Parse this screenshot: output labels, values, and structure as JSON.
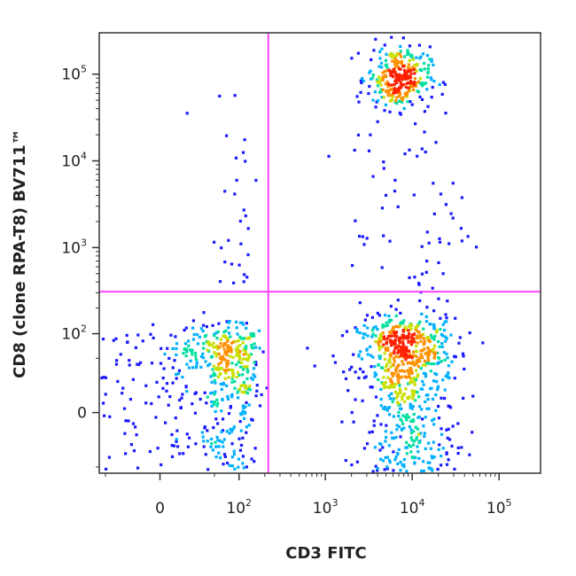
{
  "chart_data": {
    "type": "scatter",
    "xlabel": "CD3 FITC",
    "ylabel": "CD8 (clone RPA-T8) BV711™",
    "x_scale": "biexponential",
    "y_scale": "biexponential",
    "xlim": [
      -60,
      300000
    ],
    "ylim": [
      -60,
      300000
    ],
    "x_ticks": [
      {
        "value": 0,
        "base": "0",
        "exp": ""
      },
      {
        "value": 100,
        "base": "10",
        "exp": "2"
      },
      {
        "value": 1000,
        "base": "10",
        "exp": "3"
      },
      {
        "value": 10000,
        "base": "10",
        "exp": "4"
      },
      {
        "value": 100000,
        "base": "10",
        "exp": "5"
      }
    ],
    "y_ticks": [
      {
        "value": 0,
        "base": "0",
        "exp": ""
      },
      {
        "value": 100,
        "base": "10",
        "exp": "2"
      },
      {
        "value": 1000,
        "base": "10",
        "exp": "3"
      },
      {
        "value": 10000,
        "base": "10",
        "exp": "4"
      },
      {
        "value": 100000,
        "base": "10",
        "exp": "5"
      }
    ],
    "gate": {
      "x": 220,
      "y": 310,
      "color": "#ff44ff"
    },
    "colormap": [
      "#1a1aff",
      "#00b0ff",
      "#00e0a0",
      "#c8e000",
      "#ff9000",
      "#ff2000"
    ],
    "populations": [
      {
        "name": "",
        "x_center": 60,
        "y_center": 30,
        "x_spread": 55,
        "y_spread": 45,
        "count": 520
      },
      {
        "name": "",
        "x_center": 8500,
        "y_center": 30,
        "x_spread": 0.28,
        "y_spread": 60,
        "count": 800
      },
      {
        "name": "",
        "x_center": 7000,
        "y_center": 90000,
        "x_spread": 0.18,
        "y_spread": 0.18,
        "count": 300
      },
      {
        "name": "",
        "x_center": 9000,
        "y_center": 3000,
        "x_spread": 0.35,
        "y_spread": 1.1,
        "count": 90
      },
      {
        "name": "",
        "x_center": 90,
        "y_center": 3000,
        "x_spread": 40,
        "y_spread": 1.2,
        "count": 35
      }
    ],
    "grid": false,
    "legend": "none"
  }
}
